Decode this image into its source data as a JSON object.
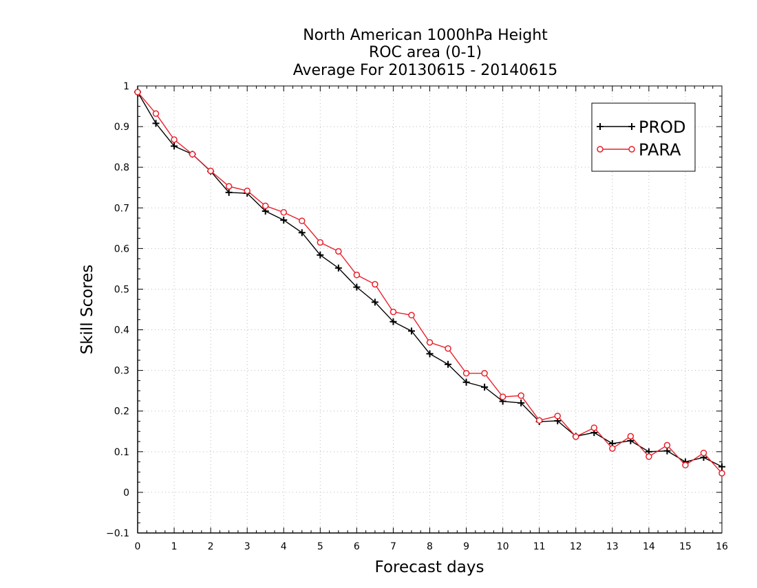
{
  "chart_data": {
    "type": "line",
    "title_lines": [
      "North American 1000hPa Height",
      "ROC area (0-1)",
      "Average For 20130615 - 20140615"
    ],
    "xlabel": "Forecast days",
    "ylabel": "Skill Scores",
    "xlim": [
      0,
      16
    ],
    "ylim": [
      -0.1,
      1
    ],
    "x_ticks": [
      0,
      1,
      2,
      3,
      4,
      5,
      6,
      7,
      8,
      9,
      10,
      11,
      12,
      13,
      14,
      15,
      16
    ],
    "x_tick_labels": [
      "0",
      "1",
      "2",
      "3",
      "4",
      "5",
      "6",
      "7",
      "8",
      "9",
      "10",
      "11",
      "12",
      "13",
      "14",
      "15",
      "16"
    ],
    "y_ticks": [
      -0.1,
      0,
      0.1,
      0.2,
      0.3,
      0.4,
      0.5,
      0.6,
      0.7,
      0.8,
      0.9,
      1
    ],
    "y_tick_labels": [
      "−0.1",
      "0",
      "0.1",
      "0.2",
      "0.3",
      "0.4",
      "0.5",
      "0.6",
      "0.7",
      "0.8",
      "0.9",
      "1"
    ],
    "grid": true,
    "legend_position": "top-right",
    "x": [
      0,
      0.5,
      1,
      1.5,
      2,
      2.5,
      3,
      3.5,
      4,
      4.5,
      5,
      5.5,
      6,
      6.5,
      7,
      7.5,
      8,
      8.5,
      9,
      9.5,
      10,
      10.5,
      11,
      11.5,
      12,
      12.5,
      13,
      13.5,
      14,
      14.5,
      15,
      15.5,
      16
    ],
    "series": [
      {
        "name": "PROD",
        "color": "#000000",
        "marker": "plus",
        "values": [
          0.985,
          0.908,
          0.852,
          0.832,
          0.79,
          0.738,
          0.736,
          0.692,
          0.67,
          0.639,
          0.584,
          0.552,
          0.505,
          0.468,
          0.42,
          0.397,
          0.341,
          0.315,
          0.271,
          0.259,
          0.224,
          0.22,
          0.174,
          0.176,
          0.138,
          0.147,
          0.12,
          0.127,
          0.1,
          0.102,
          0.075,
          0.086,
          0.063
        ]
      },
      {
        "name": "PARA",
        "color": "#e8202a",
        "marker": "circle",
        "values": [
          0.985,
          0.932,
          0.868,
          0.832,
          0.791,
          0.753,
          0.742,
          0.705,
          0.689,
          0.668,
          0.615,
          0.593,
          0.535,
          0.512,
          0.444,
          0.436,
          0.369,
          0.354,
          0.293,
          0.293,
          0.235,
          0.238,
          0.177,
          0.188,
          0.137,
          0.159,
          0.108,
          0.138,
          0.088,
          0.116,
          0.067,
          0.097,
          0.047
        ]
      }
    ]
  }
}
